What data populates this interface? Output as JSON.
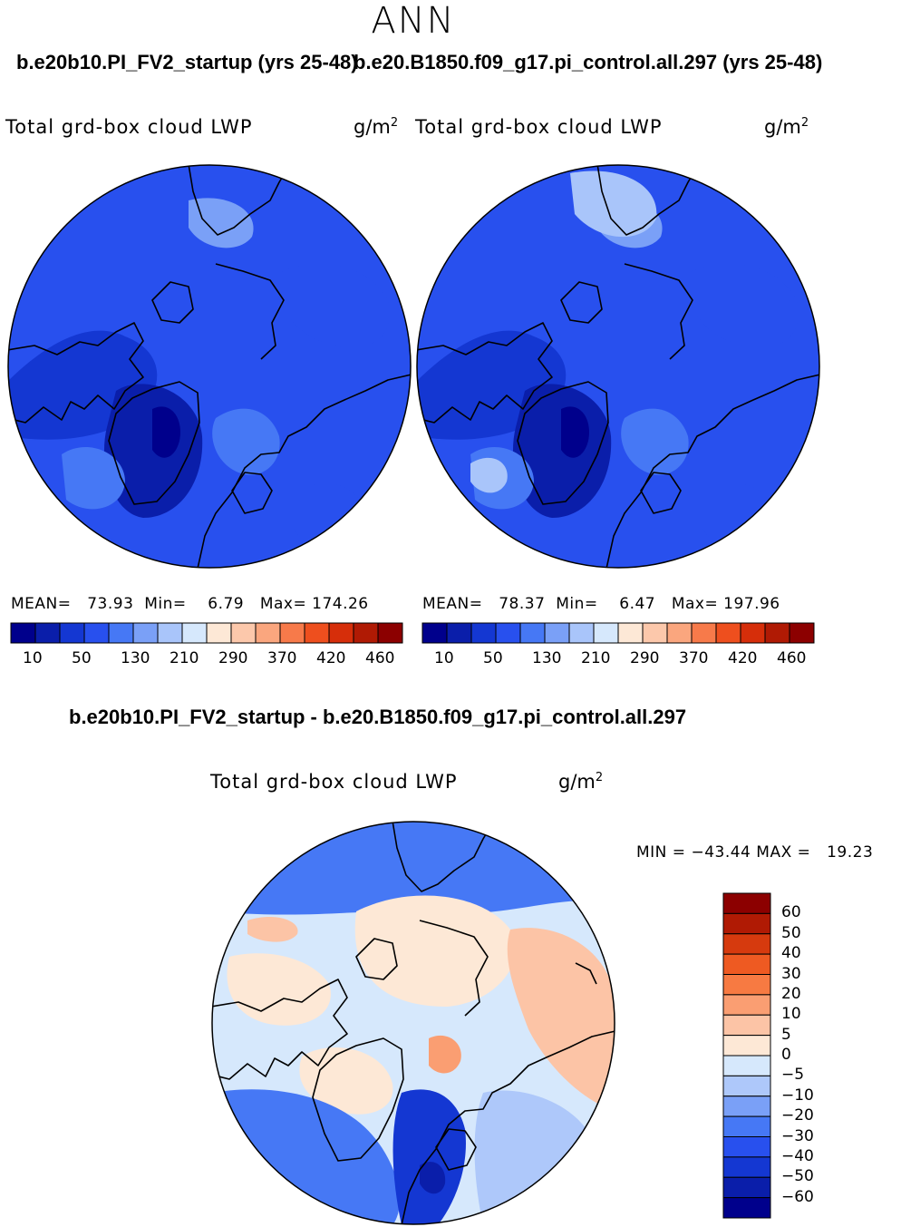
{
  "chart_data": [
    {
      "type": "heatmap",
      "title": "ANN",
      "case_name": "b.e20b10.PI_FV2_startup (yrs 25-48)",
      "variable": "Total grd-box cloud LWP",
      "units": "g/m",
      "units_power": "2",
      "projection": "polar stereographic (north)",
      "stats": {
        "mean_label": "MEAN=",
        "mean": "73.93",
        "min_label": "Min=",
        "min": "6.79",
        "max_label": "Max=",
        "max": "174.26"
      },
      "colorbar_ticks": [
        "10",
        "50",
        "130",
        "210",
        "290",
        "370",
        "420",
        "460"
      ]
    },
    {
      "type": "heatmap",
      "title": "ANN",
      "case_name": "b.e20.B1850.f09_g17.pi_control.all.297 (yrs 25-48)",
      "variable": "Total grd-box cloud LWP",
      "units": "g/m",
      "units_power": "2",
      "projection": "polar stereographic (north)",
      "stats": {
        "mean_label": "MEAN=",
        "mean": "78.37",
        "min_label": "Min=",
        "min": "6.47",
        "max_label": "Max=",
        "max": "197.96"
      },
      "colorbar_ticks": [
        "10",
        "50",
        "130",
        "210",
        "290",
        "370",
        "420",
        "460"
      ]
    },
    {
      "type": "heatmap",
      "title": "b.e20b10.PI_FV2_startup - b.e20.B1850.f09_g17.pi_control.all.297",
      "variable": "Total grd-box cloud LWP",
      "units": "g/m",
      "units_power": "2",
      "projection": "polar stereographic (north)",
      "stats": {
        "min_label": "MIN =",
        "min": "−43.44",
        "max_label": "MAX =",
        "max": "19.23"
      },
      "colorbar_ticks": [
        "60",
        "50",
        "40",
        "30",
        "20",
        "10",
        "5",
        "0",
        "−5",
        "−10",
        "−20",
        "−30",
        "−40",
        "−50",
        "−60"
      ]
    }
  ],
  "palettes": {
    "abs": [
      "#00008c",
      "#0a1eaa",
      "#1437d2",
      "#2850ee",
      "#4678f5",
      "#7aa0f7",
      "#a9c5fa",
      "#d6e8fc",
      "#fde8d6",
      "#fcc8ab",
      "#faa67e",
      "#f77a4a",
      "#ee4f1e",
      "#d62e0a",
      "#b01a04",
      "#8c0000"
    ],
    "diff": [
      "#8c0000",
      "#b01a04",
      "#d63a0e",
      "#ee5a22",
      "#f77a42",
      "#fa9e72",
      "#fcc4a6",
      "#fde8d6",
      "#d6e8fc",
      "#aec8fa",
      "#7aa0f7",
      "#4678f5",
      "#2850ee",
      "#1437d2",
      "#0a1eaa",
      "#00008c"
    ]
  }
}
